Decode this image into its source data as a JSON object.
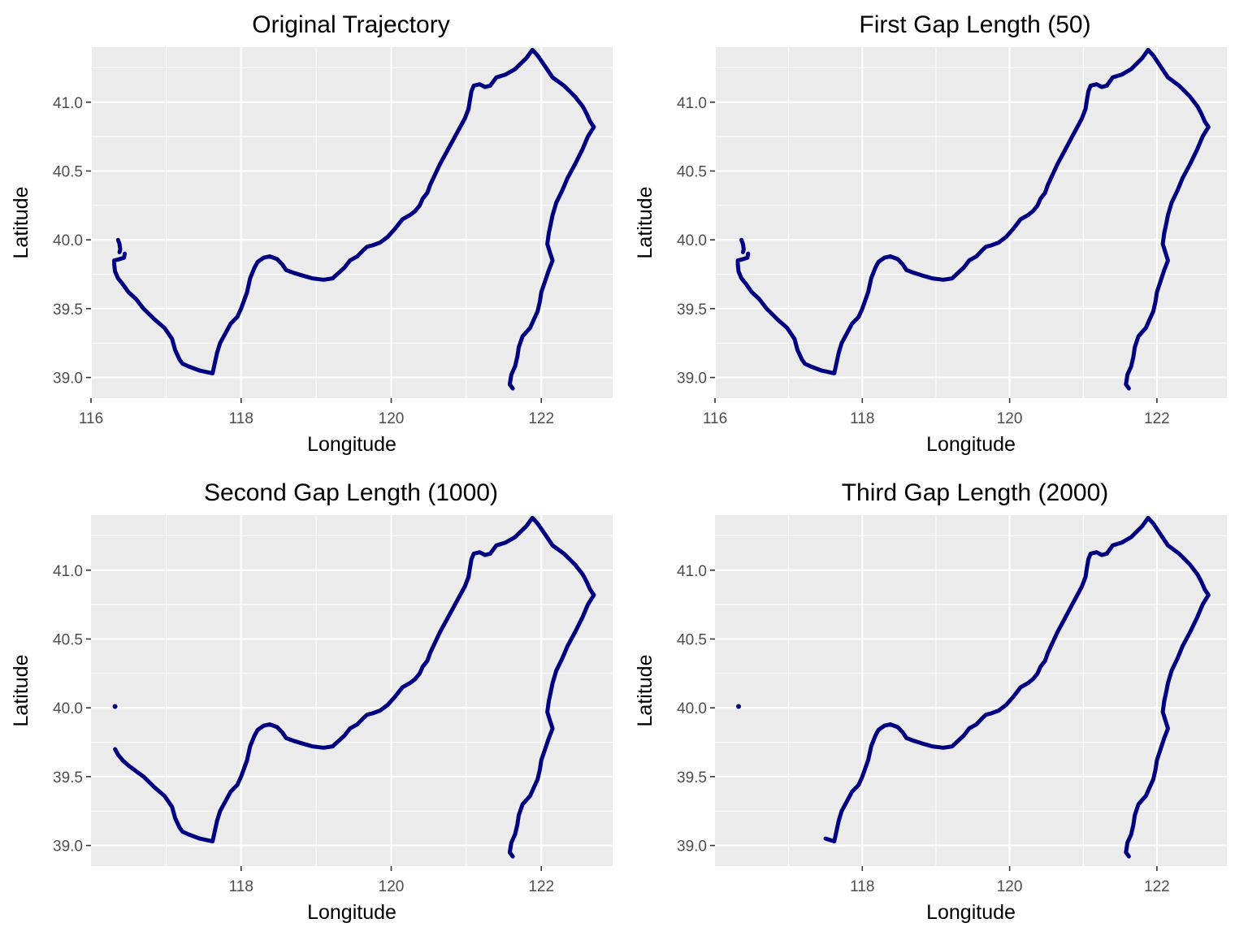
{
  "chart_data": [
    {
      "type": "line",
      "title": "Original Trajectory",
      "xlabel": "Longitude",
      "ylabel": "Latitude",
      "xlim": [
        116.0,
        122.95
      ],
      "ylim": [
        38.85,
        41.4
      ],
      "xticks": [
        116,
        118,
        120,
        122
      ],
      "yticks": [
        39.0,
        39.5,
        40.0,
        40.5,
        41.0
      ],
      "yticklabels": [
        "39.0",
        "39.5",
        "40.0",
        "40.5",
        "41.0"
      ],
      "grid": true,
      "color": "#000080",
      "series": [
        {
          "x": [
            116.36,
            116.38,
            116.39,
            116.38
          ],
          "y": [
            40.0,
            39.97,
            39.93,
            39.91
          ]
        },
        {
          "x": [
            116.45,
            116.44,
            116.38,
            116.31,
            116.31,
            116.32,
            116.36,
            116.42,
            116.5,
            116.6,
            116.7,
            116.85,
            116.98,
            117.08,
            117.12,
            117.18,
            117.22,
            117.3,
            117.45,
            117.62,
            117.68,
            117.72,
            117.8,
            117.86,
            117.95,
            118.0,
            118.08,
            118.12,
            118.18,
            118.22,
            118.3,
            118.38,
            118.48,
            118.55,
            118.6,
            118.7,
            118.82,
            118.95,
            119.1,
            119.22,
            119.3,
            119.38,
            119.45,
            119.55,
            119.62,
            119.68,
            119.75,
            119.85,
            119.95,
            120.05,
            120.15,
            120.25,
            120.32,
            120.38,
            120.42,
            120.48,
            120.52,
            120.58,
            120.65,
            120.72,
            120.78,
            120.85,
            120.9,
            120.98,
            121.03,
            121.05,
            121.07,
            121.1,
            121.18,
            121.25,
            121.32,
            121.4,
            121.52,
            121.65,
            121.8,
            121.88,
            121.95,
            122.05,
            122.15,
            122.3,
            122.45,
            122.55,
            122.6,
            122.65,
            122.7,
            122.62,
            122.55,
            122.45,
            122.35,
            122.28,
            122.2,
            122.15,
            122.12,
            122.1,
            122.08,
            122.12,
            122.15,
            122.1,
            122.05,
            122.0,
            121.98,
            121.95,
            121.9,
            121.85,
            121.75,
            121.7,
            121.68,
            121.65,
            121.6,
            121.58,
            121.62
          ],
          "y": [
            39.9,
            39.87,
            39.86,
            39.85,
            39.82,
            39.77,
            39.72,
            39.68,
            39.62,
            39.57,
            39.5,
            39.42,
            39.36,
            39.28,
            39.2,
            39.13,
            39.1,
            39.08,
            39.05,
            39.03,
            39.18,
            39.25,
            39.33,
            39.39,
            39.44,
            39.5,
            39.62,
            39.72,
            39.8,
            39.84,
            39.87,
            39.88,
            39.86,
            39.82,
            39.78,
            39.76,
            39.74,
            39.72,
            39.71,
            39.72,
            39.76,
            39.8,
            39.85,
            39.88,
            39.92,
            39.95,
            39.96,
            39.98,
            40.02,
            40.08,
            40.15,
            40.18,
            40.21,
            40.25,
            40.3,
            40.34,
            40.4,
            40.47,
            40.55,
            40.62,
            40.68,
            40.75,
            40.8,
            40.88,
            40.95,
            41.02,
            41.08,
            41.12,
            41.13,
            41.11,
            41.12,
            41.18,
            41.2,
            41.24,
            41.32,
            41.38,
            41.34,
            41.26,
            41.18,
            41.12,
            41.04,
            40.97,
            40.92,
            40.86,
            40.82,
            40.75,
            40.66,
            40.55,
            40.45,
            40.36,
            40.27,
            40.18,
            40.1,
            40.05,
            39.97,
            39.9,
            39.85,
            39.78,
            39.7,
            39.62,
            39.55,
            39.48,
            39.42,
            39.36,
            39.3,
            39.22,
            39.15,
            39.08,
            39.02,
            38.95,
            38.92
          ]
        }
      ]
    },
    {
      "type": "line",
      "title": "First Gap Length (50)",
      "xlabel": "Longitude",
      "ylabel": "Latitude",
      "xlim": [
        116.0,
        122.95
      ],
      "ylim": [
        38.85,
        41.4
      ],
      "xticks": [
        116,
        118,
        120,
        122
      ],
      "yticks": [
        39.0,
        39.5,
        40.0,
        40.5,
        41.0
      ],
      "yticklabels": [
        "39.0",
        "39.5",
        "40.0",
        "40.5",
        "41.0"
      ],
      "grid": true,
      "color": "#000080",
      "series": [
        {
          "x": [
            116.36,
            116.38,
            116.39,
            116.38
          ],
          "y": [
            40.0,
            39.97,
            39.93,
            39.91
          ]
        },
        {
          "x": [
            116.45,
            116.44,
            116.38,
            116.31,
            116.31,
            116.32,
            116.36,
            116.42,
            116.5,
            116.6,
            116.7,
            116.85,
            116.98,
            117.08,
            117.12,
            117.18,
            117.22,
            117.3,
            117.45,
            117.62,
            117.68,
            117.72,
            117.8,
            117.86,
            117.95,
            118.0,
            118.08,
            118.12,
            118.18,
            118.22,
            118.3,
            118.38,
            118.48,
            118.55,
            118.6,
            118.7,
            118.82,
            118.95,
            119.1,
            119.22,
            119.3,
            119.38,
            119.45,
            119.55,
            119.62,
            119.68,
            119.75,
            119.85,
            119.95,
            120.05,
            120.15,
            120.25,
            120.32,
            120.38,
            120.42,
            120.48,
            120.52,
            120.58,
            120.65,
            120.72,
            120.78,
            120.85,
            120.9,
            120.98,
            121.03,
            121.05,
            121.07,
            121.1,
            121.18,
            121.25,
            121.32,
            121.4,
            121.52,
            121.65,
            121.8,
            121.88,
            121.95,
            122.05,
            122.15,
            122.3,
            122.45,
            122.55,
            122.6,
            122.65,
            122.7,
            122.62,
            122.55,
            122.45,
            122.35,
            122.28,
            122.2,
            122.15,
            122.12,
            122.1,
            122.08,
            122.12,
            122.15,
            122.1,
            122.05,
            122.0,
            121.98,
            121.95,
            121.9,
            121.85,
            121.75,
            121.7,
            121.68,
            121.65,
            121.6,
            121.58,
            121.62
          ],
          "y": [
            39.9,
            39.87,
            39.86,
            39.85,
            39.82,
            39.77,
            39.72,
            39.68,
            39.62,
            39.57,
            39.5,
            39.42,
            39.36,
            39.28,
            39.2,
            39.13,
            39.1,
            39.08,
            39.05,
            39.03,
            39.18,
            39.25,
            39.33,
            39.39,
            39.44,
            39.5,
            39.62,
            39.72,
            39.8,
            39.84,
            39.87,
            39.88,
            39.86,
            39.82,
            39.78,
            39.76,
            39.74,
            39.72,
            39.71,
            39.72,
            39.76,
            39.8,
            39.85,
            39.88,
            39.92,
            39.95,
            39.96,
            39.98,
            40.02,
            40.08,
            40.15,
            40.18,
            40.21,
            40.25,
            40.3,
            40.34,
            40.4,
            40.47,
            40.55,
            40.62,
            40.68,
            40.75,
            40.8,
            40.88,
            40.95,
            41.02,
            41.08,
            41.12,
            41.13,
            41.11,
            41.12,
            41.18,
            41.2,
            41.24,
            41.32,
            41.38,
            41.34,
            41.26,
            41.18,
            41.12,
            41.04,
            40.97,
            40.92,
            40.86,
            40.82,
            40.75,
            40.66,
            40.55,
            40.45,
            40.36,
            40.27,
            40.18,
            40.1,
            40.05,
            39.97,
            39.9,
            39.85,
            39.78,
            39.7,
            39.62,
            39.55,
            39.48,
            39.42,
            39.36,
            39.3,
            39.22,
            39.15,
            39.08,
            39.02,
            38.95,
            38.92
          ]
        }
      ]
    },
    {
      "type": "line",
      "title": "Second Gap Length (1000)",
      "xlabel": "Longitude",
      "ylabel": "Latitude",
      "xlim": [
        116.0,
        122.95
      ],
      "ylim": [
        38.85,
        41.4
      ],
      "xticks": [
        118,
        120,
        122
      ],
      "yticks": [
        39.0,
        39.5,
        40.0,
        40.5,
        41.0
      ],
      "yticklabels": [
        "39.0",
        "39.5",
        "40.0",
        "40.5",
        "41.0"
      ],
      "grid": true,
      "color": "#000080",
      "series": [
        {
          "x": [
            116.32
          ],
          "y": [
            40.01
          ]
        },
        {
          "x": [
            116.32,
            116.36,
            116.42,
            116.5,
            116.6,
            116.7,
            116.85,
            116.98,
            117.08,
            117.12,
            117.18,
            117.22,
            117.3,
            117.45,
            117.62,
            117.68,
            117.72,
            117.8,
            117.86,
            117.95,
            118.0,
            118.08,
            118.12,
            118.18,
            118.22,
            118.3,
            118.38,
            118.48,
            118.55,
            118.6,
            118.7,
            118.82,
            118.95,
            119.1,
            119.22,
            119.3,
            119.38,
            119.45,
            119.55,
            119.62,
            119.68,
            119.75,
            119.85,
            119.95,
            120.05,
            120.15,
            120.25,
            120.32,
            120.38,
            120.42,
            120.48,
            120.52,
            120.58,
            120.65,
            120.72,
            120.78,
            120.85,
            120.9,
            120.98,
            121.03,
            121.05,
            121.07,
            121.1,
            121.18,
            121.25,
            121.32,
            121.4,
            121.52,
            121.65,
            121.8,
            121.88,
            121.95,
            122.05,
            122.15,
            122.3,
            122.45,
            122.55,
            122.6,
            122.65,
            122.7,
            122.62,
            122.55,
            122.45,
            122.35,
            122.28,
            122.2,
            122.15,
            122.12,
            122.1,
            122.08,
            122.12,
            122.15,
            122.1,
            122.05,
            122.0,
            121.98,
            121.95,
            121.9,
            121.85,
            121.75,
            121.7,
            121.68,
            121.65,
            121.6,
            121.58,
            121.62
          ],
          "y": [
            39.7,
            39.66,
            39.62,
            39.58,
            39.54,
            39.5,
            39.42,
            39.36,
            39.28,
            39.2,
            39.13,
            39.1,
            39.08,
            39.05,
            39.03,
            39.18,
            39.25,
            39.33,
            39.39,
            39.44,
            39.5,
            39.62,
            39.72,
            39.8,
            39.84,
            39.87,
            39.88,
            39.86,
            39.82,
            39.78,
            39.76,
            39.74,
            39.72,
            39.71,
            39.72,
            39.76,
            39.8,
            39.85,
            39.88,
            39.92,
            39.95,
            39.96,
            39.98,
            40.02,
            40.08,
            40.15,
            40.18,
            40.21,
            40.25,
            40.3,
            40.34,
            40.4,
            40.47,
            40.55,
            40.62,
            40.68,
            40.75,
            40.8,
            40.88,
            40.95,
            41.02,
            41.08,
            41.12,
            41.13,
            41.11,
            41.12,
            41.18,
            41.2,
            41.24,
            41.32,
            41.38,
            41.34,
            41.26,
            41.18,
            41.12,
            41.04,
            40.97,
            40.92,
            40.86,
            40.82,
            40.75,
            40.66,
            40.55,
            40.45,
            40.36,
            40.27,
            40.18,
            40.1,
            40.05,
            39.97,
            39.9,
            39.85,
            39.78,
            39.7,
            39.62,
            39.55,
            39.48,
            39.42,
            39.36,
            39.3,
            39.22,
            39.15,
            39.08,
            39.02,
            38.95,
            38.92
          ]
        }
      ]
    },
    {
      "type": "line",
      "title": "Third Gap Length (2000)",
      "xlabel": "Longitude",
      "ylabel": "Latitude",
      "xlim": [
        116.0,
        122.95
      ],
      "ylim": [
        38.85,
        41.4
      ],
      "xticks": [
        118,
        120,
        122
      ],
      "yticks": [
        39.0,
        39.5,
        40.0,
        40.5,
        41.0
      ],
      "yticklabels": [
        "39.0",
        "39.5",
        "40.0",
        "40.5",
        "41.0"
      ],
      "grid": true,
      "color": "#000080",
      "series": [
        {
          "x": [
            116.32
          ],
          "y": [
            40.01
          ]
        },
        {
          "x": [
            117.5,
            117.62,
            117.68,
            117.72,
            117.8,
            117.86,
            117.95,
            118.0,
            118.08,
            118.12,
            118.18,
            118.22,
            118.3,
            118.38,
            118.48,
            118.55,
            118.6,
            118.7,
            118.82,
            118.95,
            119.1,
            119.22,
            119.3,
            119.38,
            119.45,
            119.55,
            119.62,
            119.68,
            119.75,
            119.85,
            119.95,
            120.05,
            120.15,
            120.25,
            120.32,
            120.38,
            120.42,
            120.48,
            120.52,
            120.58,
            120.65,
            120.72,
            120.78,
            120.85,
            120.9,
            120.98,
            121.03,
            121.05,
            121.07,
            121.1,
            121.18,
            121.25,
            121.32,
            121.4,
            121.52,
            121.65,
            121.8,
            121.88,
            121.95,
            122.05,
            122.15,
            122.3,
            122.45,
            122.55,
            122.6,
            122.65,
            122.7,
            122.62,
            122.55,
            122.45,
            122.35,
            122.28,
            122.2,
            122.15,
            122.12,
            122.1,
            122.08,
            122.12,
            122.15,
            122.1,
            122.05,
            122.0,
            121.98,
            121.95,
            121.9,
            121.85,
            121.75,
            121.7,
            121.68,
            121.65,
            121.6,
            121.58,
            121.62
          ],
          "y": [
            39.05,
            39.03,
            39.18,
            39.25,
            39.33,
            39.39,
            39.44,
            39.5,
            39.62,
            39.72,
            39.8,
            39.84,
            39.87,
            39.88,
            39.86,
            39.82,
            39.78,
            39.76,
            39.74,
            39.72,
            39.71,
            39.72,
            39.76,
            39.8,
            39.85,
            39.88,
            39.92,
            39.95,
            39.96,
            39.98,
            40.02,
            40.08,
            40.15,
            40.18,
            40.21,
            40.25,
            40.3,
            40.34,
            40.4,
            40.47,
            40.55,
            40.62,
            40.68,
            40.75,
            40.8,
            40.88,
            40.95,
            41.02,
            41.08,
            41.12,
            41.13,
            41.11,
            41.12,
            41.18,
            41.2,
            41.24,
            41.32,
            41.38,
            41.34,
            41.26,
            41.18,
            41.12,
            41.04,
            40.97,
            40.92,
            40.86,
            40.82,
            40.75,
            40.66,
            40.55,
            40.45,
            40.36,
            40.27,
            40.18,
            40.1,
            40.05,
            39.97,
            39.9,
            39.85,
            39.78,
            39.7,
            39.62,
            39.55,
            39.48,
            39.42,
            39.36,
            39.3,
            39.22,
            39.15,
            39.08,
            39.02,
            38.95,
            38.92
          ]
        }
      ]
    }
  ]
}
